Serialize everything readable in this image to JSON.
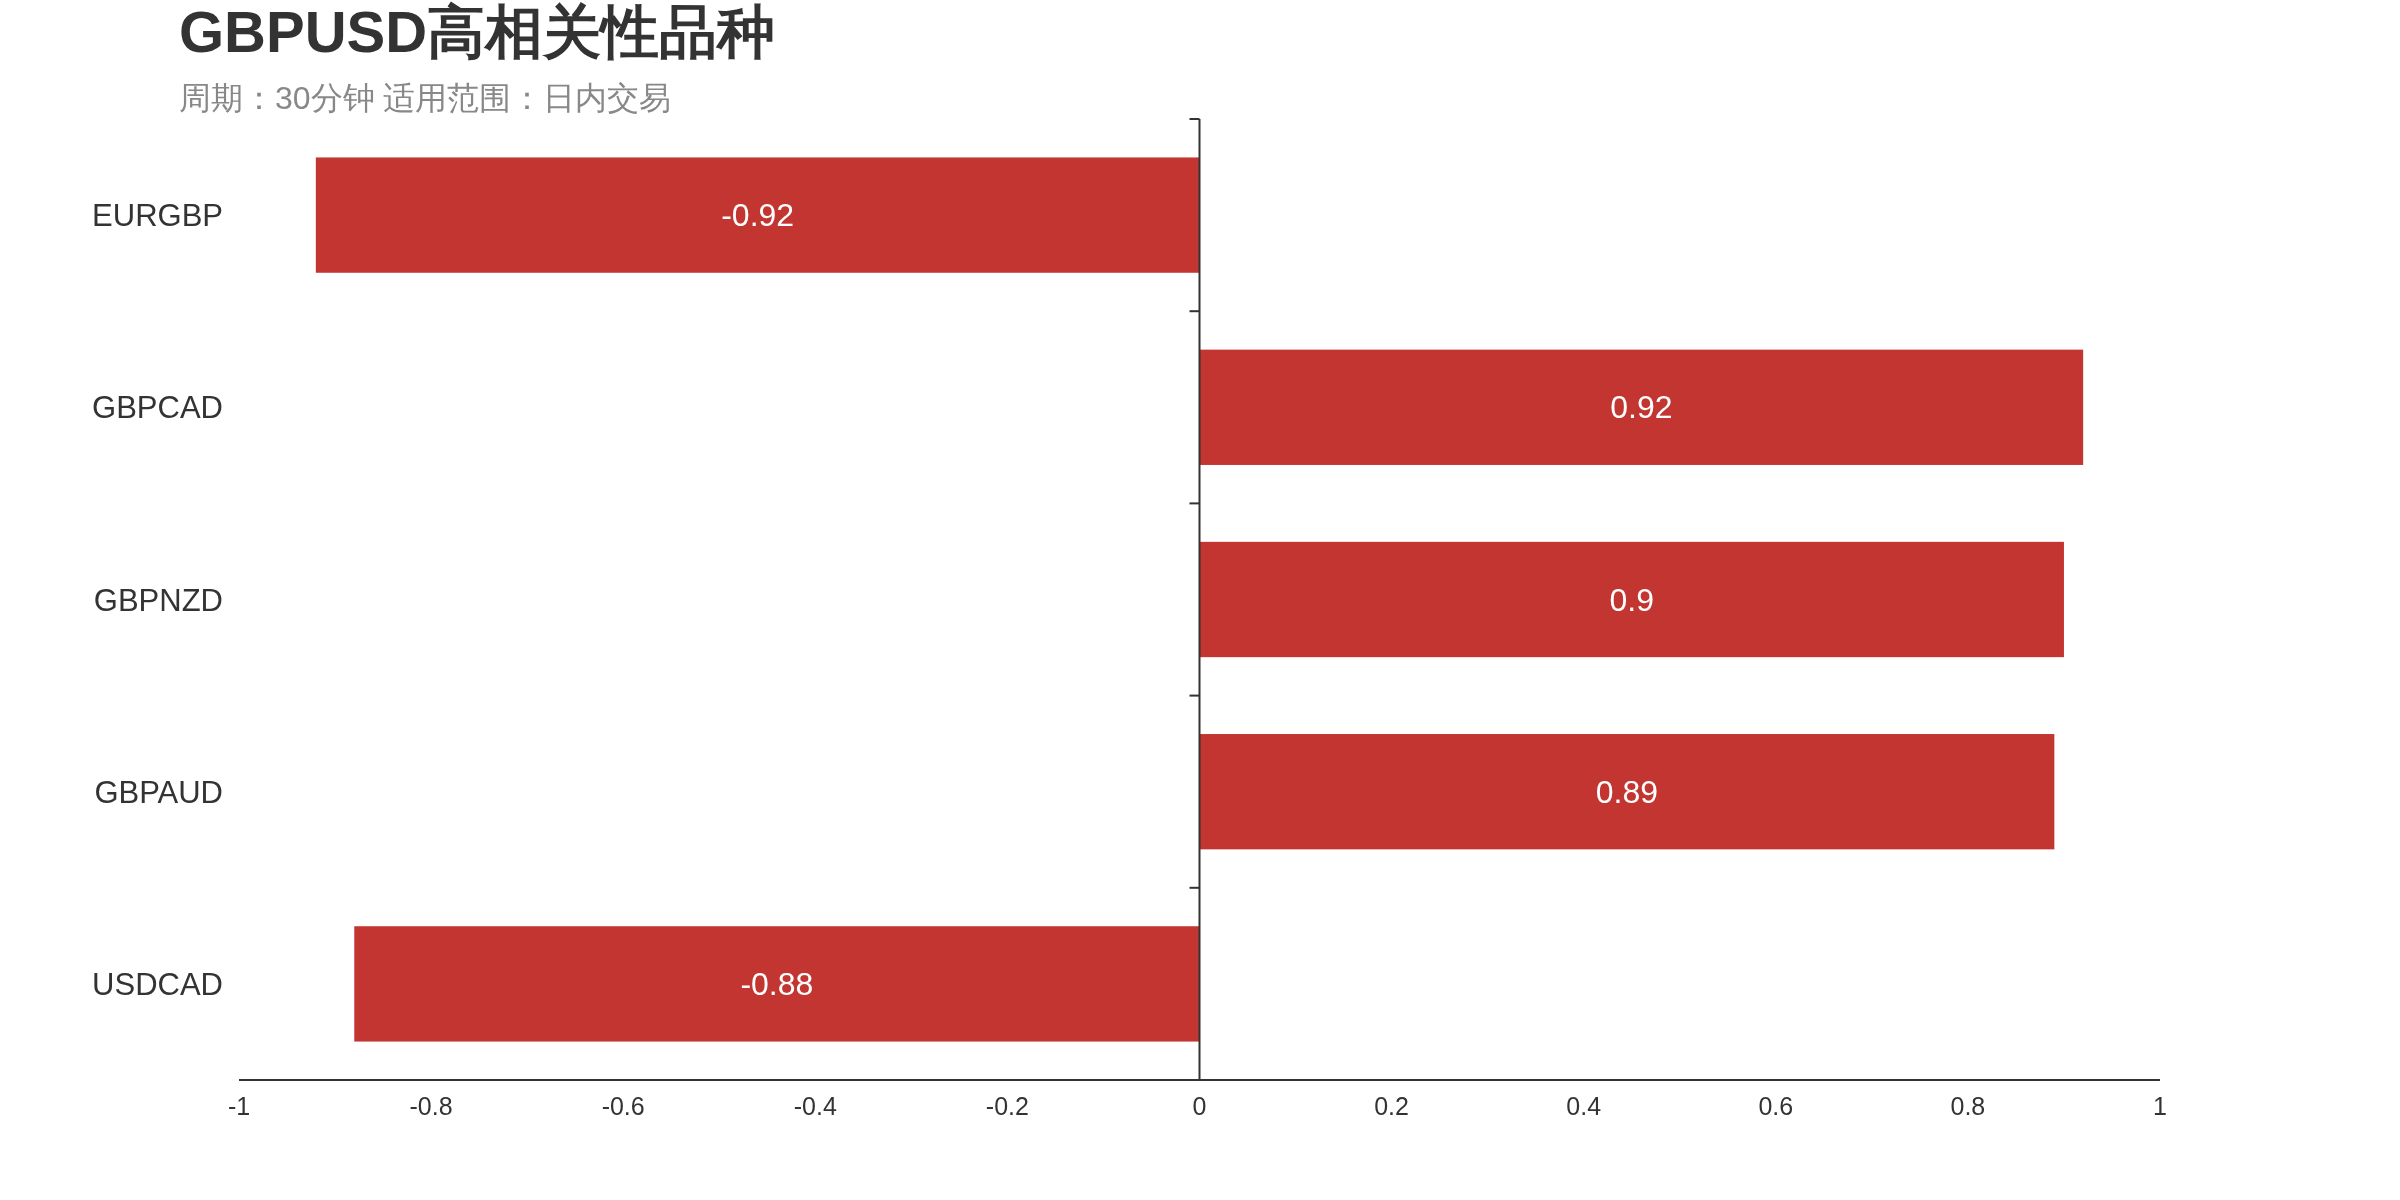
{
  "chart_data": {
    "type": "bar",
    "orientation": "horizontal",
    "title": "GBPUSD高相关性品种",
    "subtitle": "周期：30分钟 适用范围：日内交易",
    "categories": [
      "EURGBP",
      "GBPCAD",
      "GBPNZD",
      "GBPAUD",
      "USDCAD"
    ],
    "values": [
      -0.92,
      0.92,
      0.9,
      0.89,
      -0.88
    ],
    "color": "#c33531",
    "xlim": [
      -1,
      1
    ],
    "xticks": [
      -1,
      -0.8,
      -0.6,
      -0.4,
      -0.2,
      0,
      0.2,
      0.4,
      0.6,
      0.8,
      1
    ],
    "data_labels": true
  }
}
